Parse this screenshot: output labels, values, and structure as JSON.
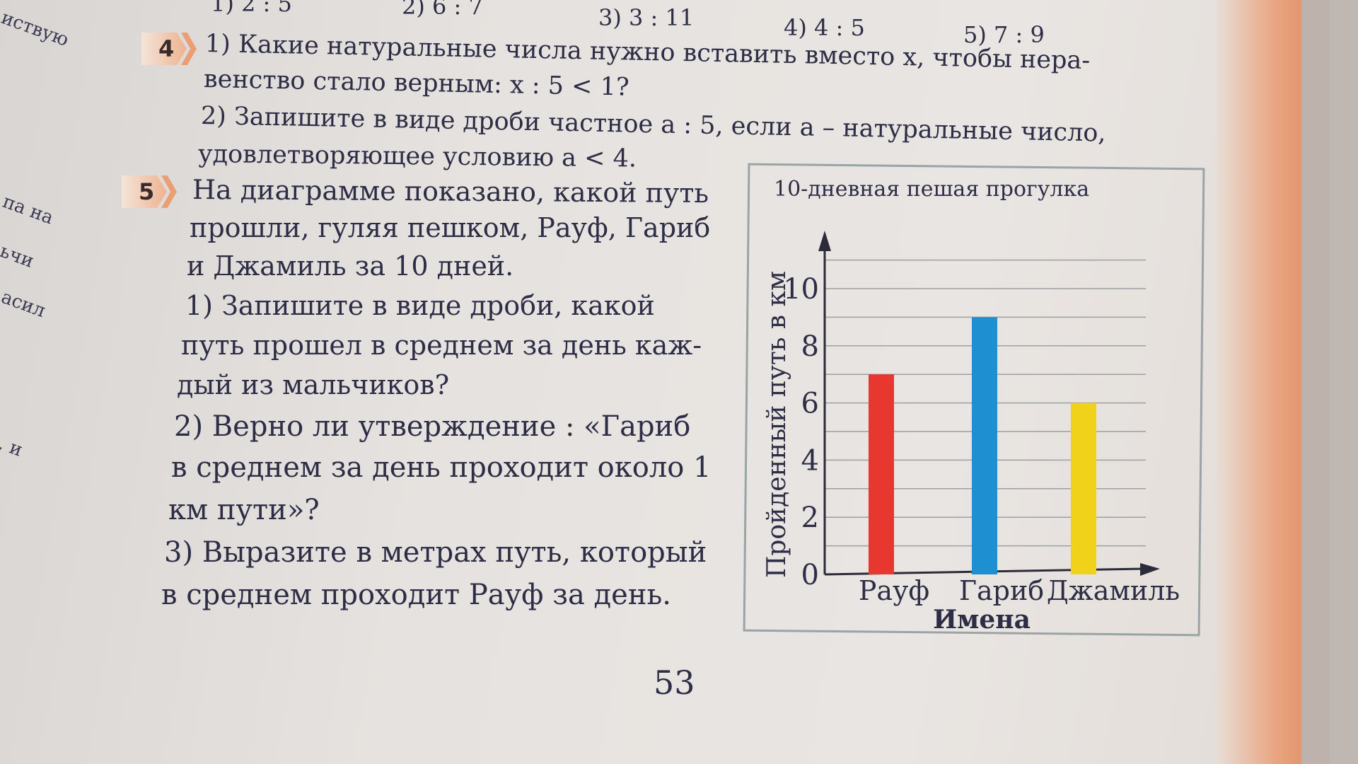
{
  "top_answers": [
    "1) 2 : 5",
    "2) 6 : 7",
    "3) 3 : 11",
    "4) 4 : 5",
    "5) 7 : 9"
  ],
  "margin": [
    "иствую",
    "па на",
    "ьчи",
    "асил",
    ", и"
  ],
  "task4": {
    "number": "4",
    "line1": "1) Какие натуральные числа нужно вставить вместо x, чтобы нера-",
    "line2": "венство стало верным: x : 5 < 1?",
    "line3": "2) Запишите в виде дроби частное a : 5, если a – натуральные число,",
    "line4": "удовлетворяющее условию a < 4."
  },
  "task5": {
    "number": "5",
    "lines": [
      "На диаграмме показано, какой путь",
      "прошли, гуляя пешком, Рауф, Гариб",
      "и Джамиль за 10 дней.",
      "1) Запишите в виде дроби, какой",
      "путь прошел в среднем за день каж-",
      "дый из мальчиков?",
      "2) Верно ли утверждение : «Гариб",
      "в среднем за день проходит около 1",
      "км пути»?",
      "3) Выразите в метрах путь, который",
      "в среднем проходит Рауф за день."
    ]
  },
  "chart_data": {
    "type": "bar",
    "title": "10-дневная пешая прогулка",
    "categories": [
      "Рауф",
      "Гариб",
      "Джамиль"
    ],
    "values": [
      7,
      9,
      6
    ],
    "colors": [
      "#e8372f",
      "#1e8fd0",
      "#f0d21a"
    ],
    "xlabel": "Имена",
    "ylabel": "Пройденный путь в км",
    "yticks": [
      "0",
      "2",
      "4",
      "6",
      "8",
      "10"
    ],
    "ylim": [
      0,
      10
    ],
    "grid": true
  },
  "page_number": "53"
}
